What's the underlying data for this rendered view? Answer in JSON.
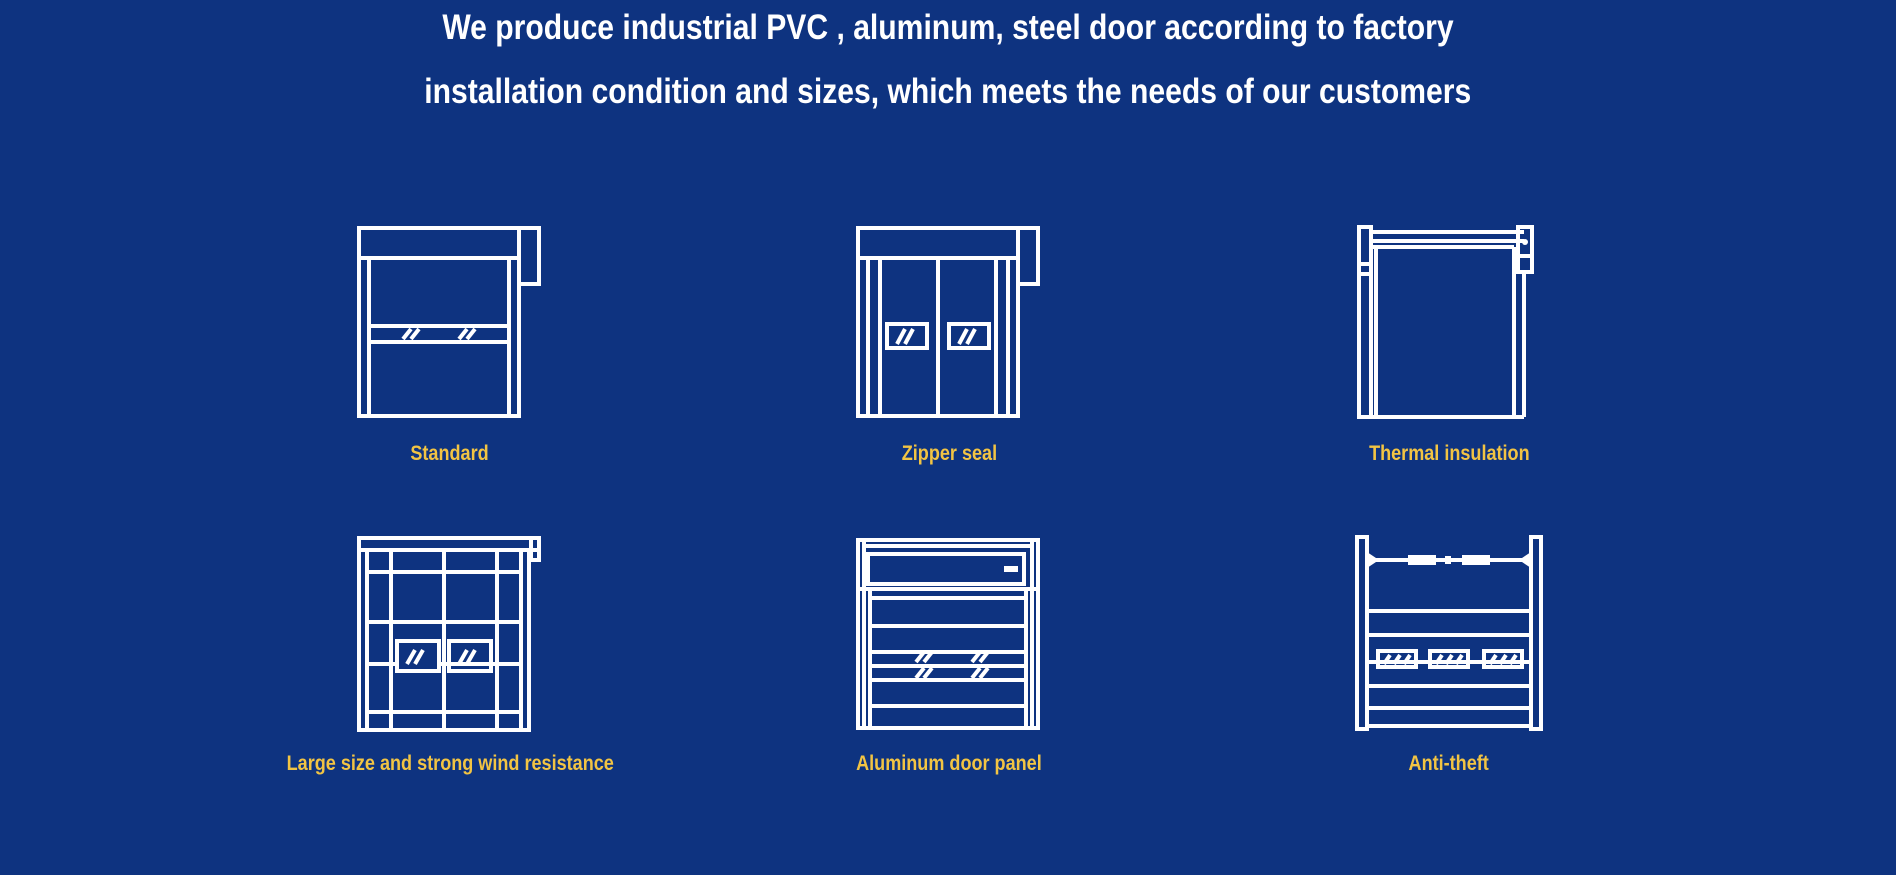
{
  "headline": {
    "line1": "We produce industrial PVC , aluminum, steel door according to factory",
    "line2": "installation condition and sizes, which meets the needs of our customers"
  },
  "colors": {
    "background": "#0e3380",
    "label": "#f2c443",
    "icon": "#ffffff"
  },
  "features": [
    {
      "label": "Standard",
      "icon": "standard-door-icon"
    },
    {
      "label": "Zipper seal",
      "icon": "zipper-seal-door-icon"
    },
    {
      "label": "Thermal insulation",
      "icon": "thermal-insulation-door-icon"
    },
    {
      "label": "Large size and strong wind resistance",
      "icon": "large-wind-resistant-door-icon"
    },
    {
      "label": "Aluminum door panel",
      "icon": "aluminum-panel-door-icon"
    },
    {
      "label": "Anti-theft",
      "icon": "anti-theft-door-icon"
    }
  ]
}
